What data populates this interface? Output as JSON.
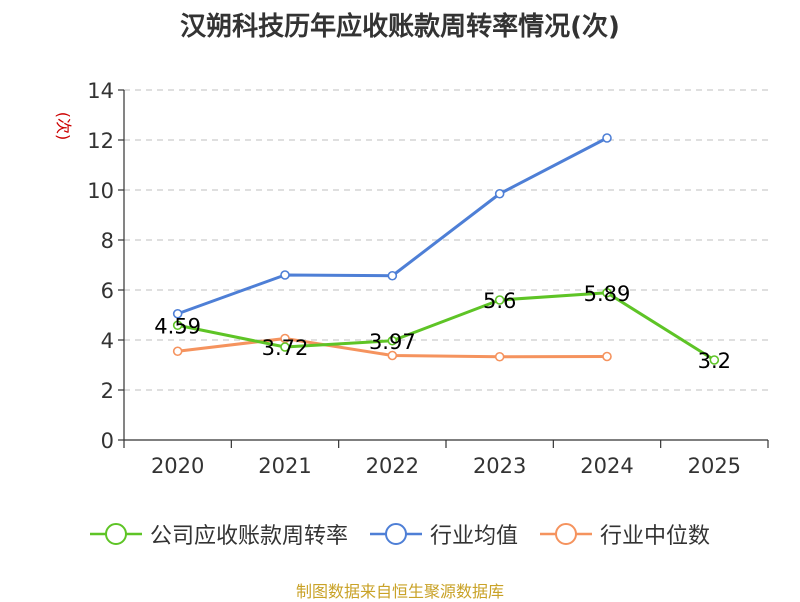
{
  "chart_data": {
    "type": "line",
    "title": "汉朔科技历年应收账款周转率情况(次)",
    "ylabel": "(次)",
    "xlabel": "",
    "categories": [
      "2020",
      "2021",
      "2022",
      "2023",
      "2024",
      "2025"
    ],
    "ylim": [
      0,
      14
    ],
    "yticks": [
      0,
      2,
      4,
      6,
      8,
      10,
      12,
      14
    ],
    "grid": true,
    "legend_position": "bottom",
    "series": [
      {
        "name": "公司应收账款周转率",
        "color": "#5ec426",
        "values": [
          4.59,
          3.72,
          3.97,
          5.6,
          5.89,
          3.2
        ],
        "labels": [
          "4.59",
          "3.72",
          "3.97",
          "5.6",
          "5.89",
          "3.2"
        ]
      },
      {
        "name": "行业均值",
        "color": "#4e7fd6",
        "values": [
          5.05,
          6.6,
          6.57,
          9.85,
          12.08,
          null
        ]
      },
      {
        "name": "行业中位数",
        "color": "#f5935e",
        "values": [
          3.55,
          4.06,
          3.38,
          3.33,
          3.34,
          null
        ]
      }
    ]
  },
  "source_text": "制图数据来自恒生聚源数据库"
}
